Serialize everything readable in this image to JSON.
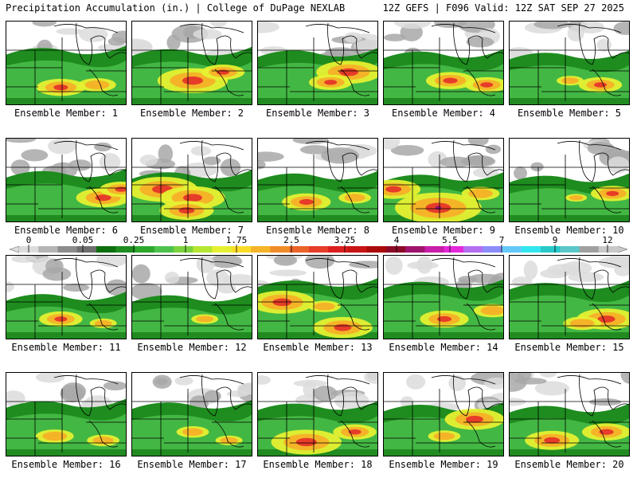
{
  "header": {
    "title_left": "Precipitation Accumulation (in.) | College of DuPage NEXLAB",
    "title_right": "12Z GEFS | F096 Valid: 12Z SAT SEP 27 2025"
  },
  "members": [
    {
      "label": "Ensemble Member: 1",
      "hot": [
        [
          0.45,
          0.78,
          0.9
        ],
        [
          0.75,
          0.75,
          0.7
        ]
      ]
    },
    {
      "label": "Ensemble Member: 2",
      "hot": [
        [
          0.5,
          0.7,
          1.3
        ],
        [
          0.75,
          0.6,
          0.8
        ]
      ]
    },
    {
      "label": "Ensemble Member: 3",
      "hot": [
        [
          0.75,
          0.6,
          1.2
        ],
        [
          0.6,
          0.72,
          0.8
        ]
      ]
    },
    {
      "label": "Ensemble Member: 4",
      "hot": [
        [
          0.55,
          0.7,
          0.9
        ],
        [
          0.85,
          0.75,
          0.8
        ]
      ]
    },
    {
      "label": "Ensemble Member: 5",
      "hot": [
        [
          0.75,
          0.75,
          0.8
        ],
        [
          0.5,
          0.7,
          0.5
        ]
      ]
    },
    {
      "label": "Ensemble Member: 6",
      "hot": [
        [
          0.8,
          0.7,
          1.0
        ],
        [
          0.95,
          0.6,
          0.8
        ]
      ]
    },
    {
      "label": "Ensemble Member: 7",
      "hot": [
        [
          0.25,
          0.6,
          1.3
        ],
        [
          0.5,
          0.7,
          1.2
        ],
        [
          0.45,
          0.85,
          1.0
        ]
      ]
    },
    {
      "label": "Ensemble Member: 8",
      "hot": [
        [
          0.4,
          0.75,
          0.9
        ],
        [
          0.8,
          0.7,
          0.6
        ]
      ]
    },
    {
      "label": "Ensemble Member: 9",
      "hot": [
        [
          0.45,
          0.82,
          1.6
        ],
        [
          0.08,
          0.6,
          1.0
        ],
        [
          0.8,
          0.65,
          0.7
        ]
      ]
    },
    {
      "label": "Ensemble Member: 10",
      "hot": [
        [
          0.85,
          0.65,
          0.8
        ],
        [
          0.55,
          0.7,
          0.4
        ]
      ]
    },
    {
      "label": "Ensemble Member: 11",
      "hot": [
        [
          0.45,
          0.75,
          0.8
        ],
        [
          0.8,
          0.8,
          0.5
        ]
      ]
    },
    {
      "label": "Ensemble Member: 12",
      "hot": [
        [
          0.6,
          0.75,
          0.5
        ]
      ]
    },
    {
      "label": "Ensemble Member: 13",
      "hot": [
        [
          0.2,
          0.55,
          1.2
        ],
        [
          0.7,
          0.85,
          1.1
        ],
        [
          0.55,
          0.6,
          0.6
        ]
      ]
    },
    {
      "label": "Ensemble Member: 14",
      "hot": [
        [
          0.5,
          0.75,
          0.9
        ],
        [
          0.9,
          0.65,
          0.7
        ]
      ]
    },
    {
      "label": "Ensemble Member: 15",
      "hot": [
        [
          0.8,
          0.75,
          1.1
        ],
        [
          0.6,
          0.8,
          0.7
        ]
      ]
    },
    {
      "label": "Ensemble Member: 16",
      "hot": [
        [
          0.4,
          0.75,
          0.7
        ],
        [
          0.8,
          0.8,
          0.6
        ]
      ]
    },
    {
      "label": "Ensemble Member: 17",
      "hot": [
        [
          0.5,
          0.7,
          0.6
        ],
        [
          0.8,
          0.8,
          0.5
        ]
      ]
    },
    {
      "label": "Ensemble Member: 18",
      "hot": [
        [
          0.4,
          0.82,
          1.3
        ],
        [
          0.8,
          0.7,
          0.8
        ]
      ]
    },
    {
      "label": "Ensemble Member: 19",
      "hot": [
        [
          0.75,
          0.55,
          1.1
        ],
        [
          0.5,
          0.75,
          0.6
        ]
      ]
    },
    {
      "label": "Ensemble Member: 20",
      "hot": [
        [
          0.35,
          0.8,
          1.0
        ],
        [
          0.8,
          0.7,
          0.9
        ]
      ]
    }
  ],
  "colorbar": {
    "tick_labels": [
      "0",
      "0.05",
      "0.25",
      "1",
      "1.75",
      "2.5",
      "3.25",
      "4",
      "5.5",
      "7",
      "9",
      "12"
    ],
    "colors": [
      "#dcdcdc",
      "#b4b4b4",
      "#8c8c8c",
      "#6e6e6e",
      "#0c6e0c",
      "#1e8c1e",
      "#2da82d",
      "#4cc24c",
      "#7cd23c",
      "#b4e632",
      "#e6f032",
      "#fadc28",
      "#f5b428",
      "#f08c28",
      "#eb6428",
      "#e63c28",
      "#dc1e1e",
      "#c81414",
      "#aa0a0a",
      "#8c0a28",
      "#a0146e",
      "#c81eaa",
      "#e628dc",
      "#b46ef0",
      "#8c8cfa",
      "#64c8fa",
      "#32e6f0",
      "#28c8c8",
      "#5ac8c8",
      "#a0a0a0",
      "#c8c8c8"
    ]
  },
  "colors": {
    "green_dark": "#0c6e0c",
    "green": "#1e8c1e",
    "green_light": "#4cc24c",
    "yellow": "#e6f032",
    "orange": "#f5b428",
    "red": "#e63c28",
    "gray_light": "#dcdcdc",
    "gray": "#a8a8a8"
  }
}
